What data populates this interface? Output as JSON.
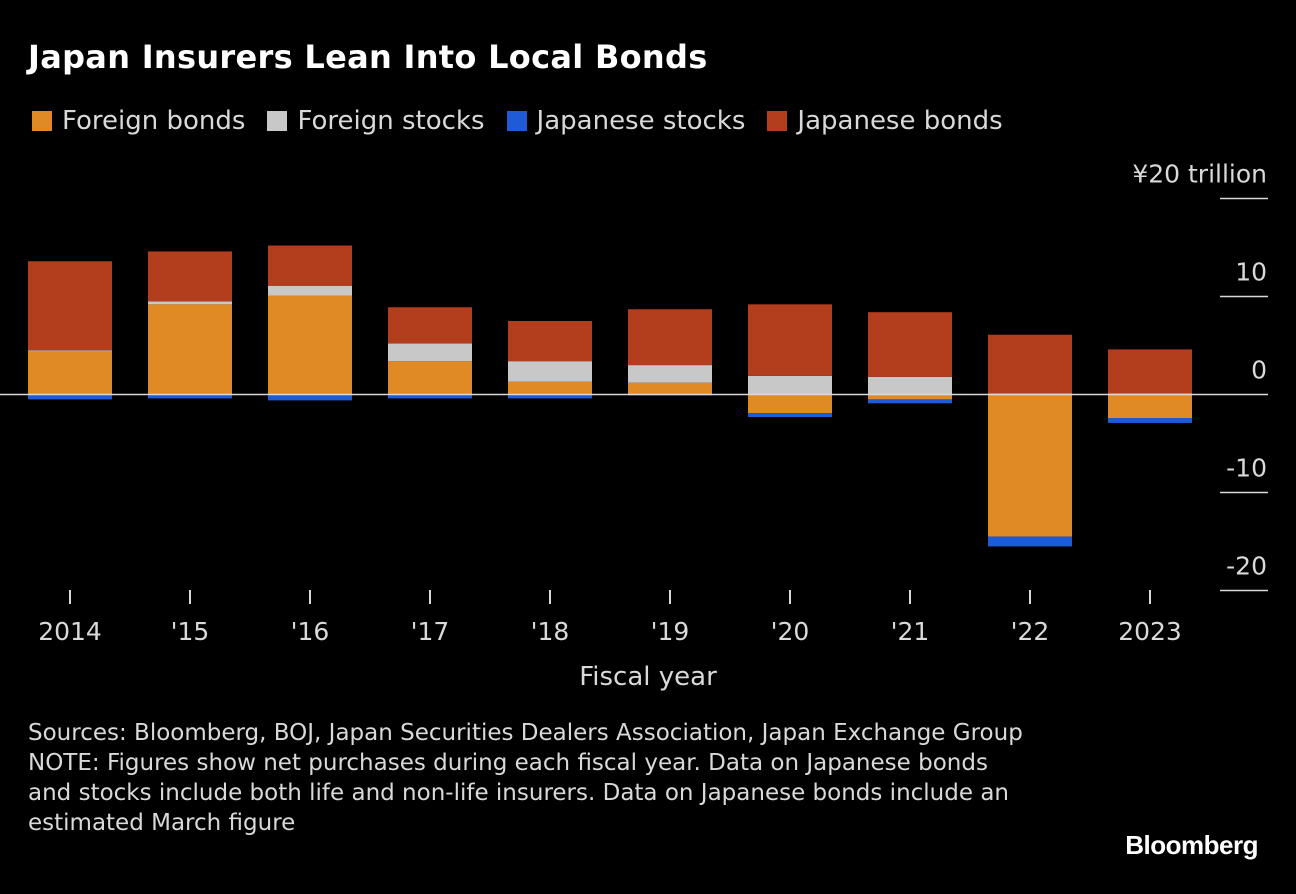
{
  "title": "Japan Insurers Lean Into Local Bonds",
  "legend": [
    {
      "label": "Foreign bonds",
      "color": "#E08A26"
    },
    {
      "label": "Foreign stocks",
      "color": "#C8C8C8"
    },
    {
      "label": "Japanese stocks",
      "color": "#1E5BD6"
    },
    {
      "label": "Japanese bonds",
      "color": "#B23E1E"
    }
  ],
  "chart_data": {
    "type": "bar",
    "stacked": true,
    "title": "Japan Insurers Lean Into Local Bonds",
    "xlabel": "Fiscal year",
    "ylabel": "¥20 trillion",
    "ylim": [
      -20,
      20
    ],
    "yticks": [
      {
        "value": 20,
        "label": "¥20 trillion"
      },
      {
        "value": 10,
        "label": "10"
      },
      {
        "value": 0,
        "label": "0"
      },
      {
        "value": -10,
        "label": "-10"
      },
      {
        "value": -20,
        "label": "-20"
      }
    ],
    "categories": [
      "2014",
      "'15",
      "'16",
      "'17",
      "'18",
      "'19",
      "'20",
      "'21",
      "'22",
      "2023"
    ],
    "series": [
      {
        "name": "Foreign bonds",
        "color": "#E08A26",
        "values": [
          4.4,
          9.2,
          10.1,
          3.4,
          1.3,
          1.2,
          -1.9,
          -0.5,
          -14.5,
          -2.4
        ]
      },
      {
        "name": "Foreign stocks",
        "color": "#C8C8C8",
        "values": [
          0.1,
          0.3,
          1.0,
          1.8,
          2.1,
          1.8,
          1.9,
          1.8,
          0.1,
          0.1
        ]
      },
      {
        "name": "Japanese stocks",
        "color": "#1E5BD6",
        "values": [
          -0.5,
          -0.4,
          -0.6,
          -0.4,
          -0.4,
          -0.1,
          -0.4,
          -0.4,
          -1.0,
          -0.5
        ]
      },
      {
        "name": "Japanese bonds",
        "color": "#B23E1E",
        "values": [
          9.1,
          5.1,
          4.1,
          3.7,
          4.1,
          5.7,
          7.3,
          6.6,
          6.0,
          4.5
        ]
      }
    ]
  },
  "xaxis_title": "Fiscal year",
  "sources": "Sources: Bloomberg, BOJ, Japan Securities Dealers Association, Japan Exchange Group",
  "note": "NOTE: Figures show net purchases during each fiscal year. Data on Japanese bonds and stocks include both life and non-life insurers. Data on Japanese bonds include an estimated March figure",
  "brand": "Bloomberg"
}
